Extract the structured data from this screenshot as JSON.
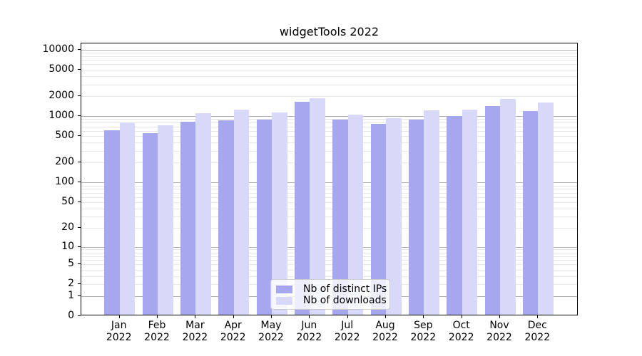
{
  "chart_data": {
    "type": "bar",
    "title": "widgetTools 2022",
    "scale": "log1p",
    "grid": true,
    "legend_position": "lower center",
    "categories": [
      "Jan 2022",
      "Feb 2022",
      "Mar 2022",
      "Apr 2022",
      "May 2022",
      "Jun 2022",
      "Jul 2022",
      "Aug 2022",
      "Sep 2022",
      "Oct 2022",
      "Nov 2022",
      "Dec 2022"
    ],
    "series": [
      {
        "name": "Nb of distinct IPs",
        "color": "#a7a7f0",
        "values": [
          580,
          527,
          780,
          818,
          838,
          1548,
          842,
          730,
          840,
          955,
          1344,
          1146
        ]
      },
      {
        "name": "Nb of downloads",
        "color": "#d8d8f8",
        "values": [
          770,
          700,
          1046,
          1185,
          1083,
          1784,
          1010,
          897,
          1166,
          1205,
          1740,
          1536
        ]
      }
    ],
    "y_ticks": [
      0,
      1,
      2,
      5,
      10,
      20,
      50,
      100,
      200,
      500,
      1000,
      2000,
      5000,
      10000
    ],
    "ylim": [
      0,
      12360
    ],
    "xlabel": "",
    "ylabel": ""
  },
  "colors": {
    "major_grid": "#b0b0b0",
    "minor_grid": "#e7e7e7",
    "axis": "#000000",
    "background": "#ffffff"
  }
}
